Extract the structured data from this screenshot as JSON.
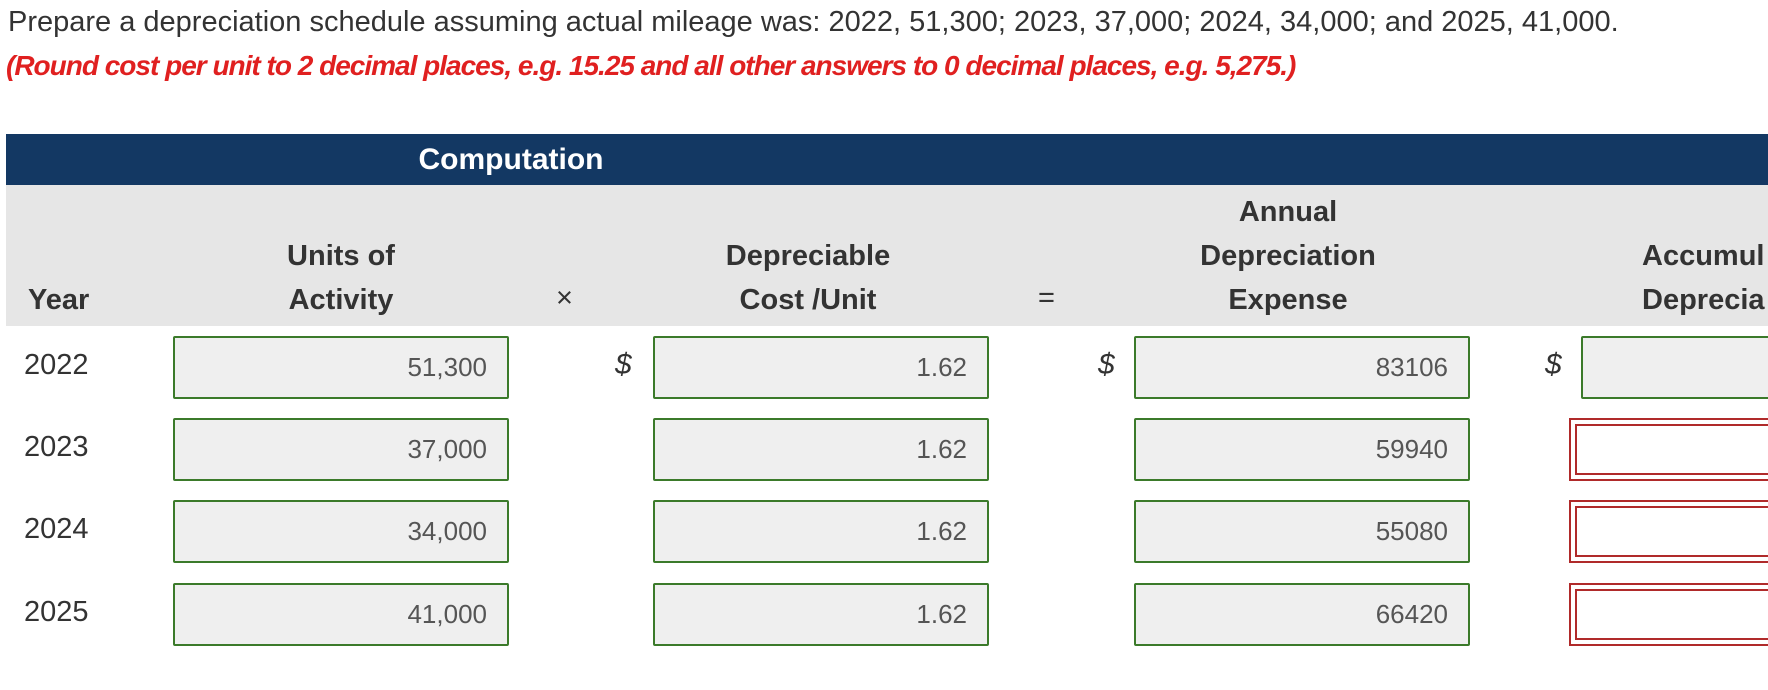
{
  "instruction": "Prepare a depreciation schedule assuming actual mileage was: 2022, 51,300; 2023, 37,000; 2024, 34,000; and 2025, 41,000.",
  "note": "(Round cost per unit to 2 decimal places, e.g. 15.25 and all other answers to 0 decimal places, e.g. 5,275.)",
  "table": {
    "section_header": "Computation",
    "headers": {
      "year": "Year",
      "units": [
        "Units of",
        "Activity"
      ],
      "times": "×",
      "cost": [
        "Depreciable",
        "Cost /Unit"
      ],
      "equals": "=",
      "annual": [
        "Annual",
        "Depreciation",
        "Expense"
      ],
      "accumulated": [
        "Accumul",
        "Deprecia"
      ]
    },
    "currency": "$",
    "rows": [
      {
        "year": "2022",
        "units": "51,300",
        "cost": 1.62,
        "annual": 83106
      },
      {
        "year": "2023",
        "units": "37,000",
        "cost": 1.62,
        "annual": 59940
      },
      {
        "year": "2024",
        "units": "34,000",
        "cost": 1.62,
        "annual": 55080
      },
      {
        "year": "2025",
        "units": "41,000",
        "cost": 1.62,
        "annual": 66420
      }
    ]
  }
}
